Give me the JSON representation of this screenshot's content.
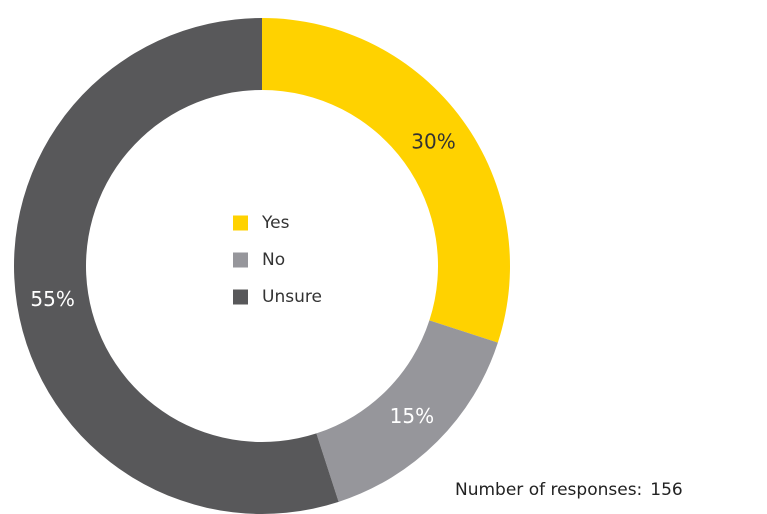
{
  "chart_data": {
    "type": "pie",
    "categories": [
      "Yes",
      "No",
      "Unsure"
    ],
    "values": [
      30,
      15,
      55
    ],
    "value_labels": [
      "30%",
      "15%",
      "55%"
    ],
    "colors": [
      "#FFD200",
      "#96969B",
      "#58585A"
    ],
    "legend_position": "center"
  },
  "footnote": {
    "label": "Number of responses:",
    "value": "156"
  }
}
